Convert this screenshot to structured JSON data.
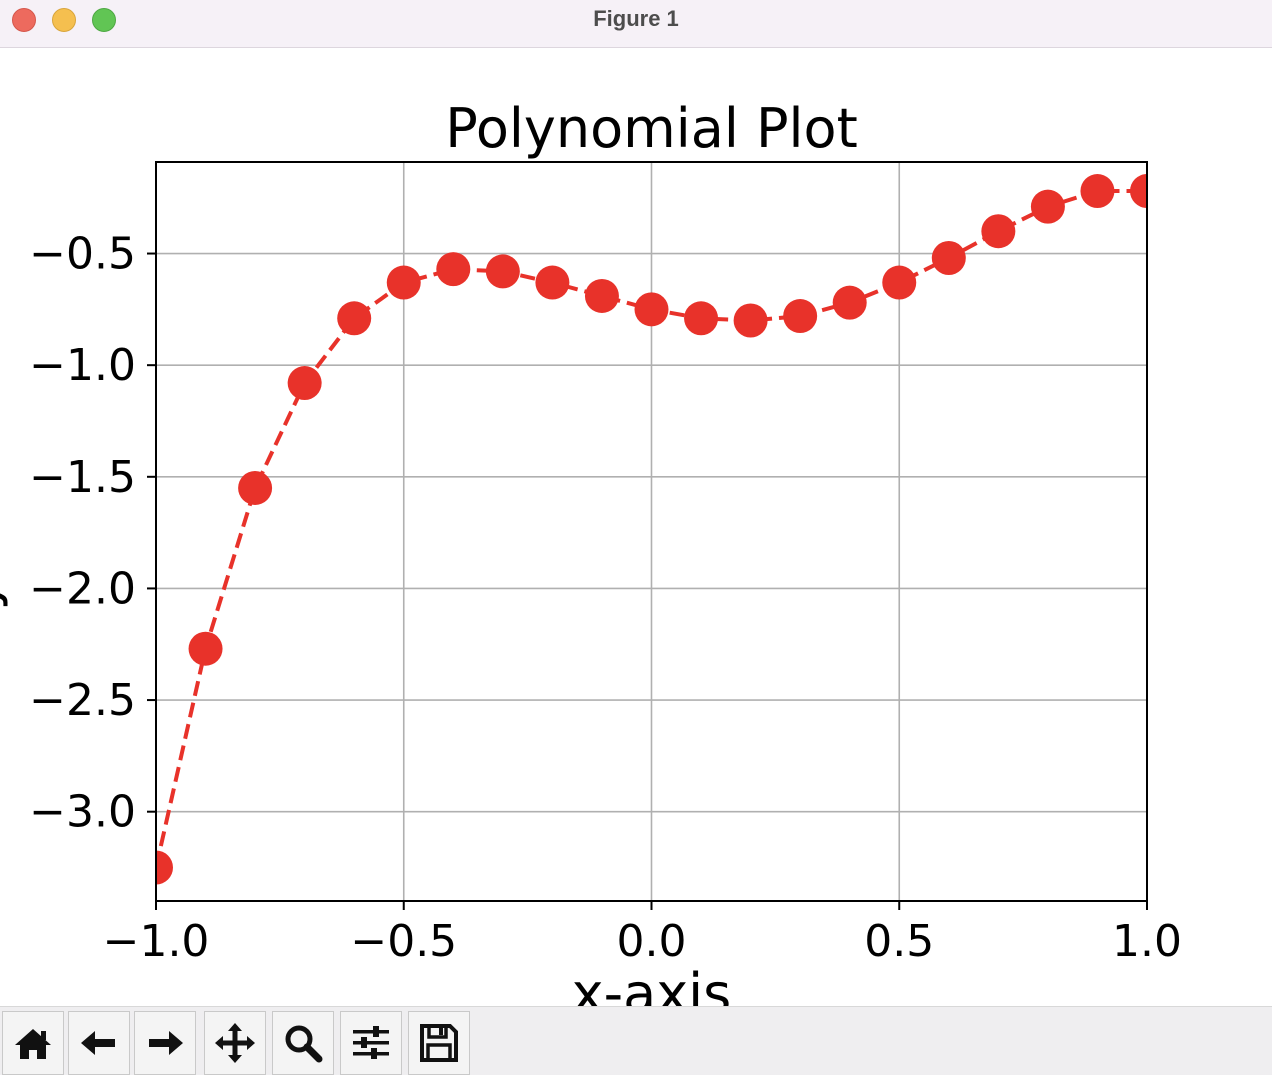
{
  "window": {
    "title": "Figure 1",
    "controls": [
      "close",
      "minimize",
      "maximize"
    ]
  },
  "toolbar": {
    "buttons": [
      {
        "name": "home",
        "icon": "home-icon"
      },
      {
        "name": "back",
        "icon": "arrow-left-icon"
      },
      {
        "name": "forward",
        "icon": "arrow-right-icon"
      },
      {
        "name": "pan",
        "icon": "move-icon"
      },
      {
        "name": "zoom",
        "icon": "magnifier-icon"
      },
      {
        "name": "configure-subplots",
        "icon": "sliders-icon"
      },
      {
        "name": "save",
        "icon": "floppy-disk-icon"
      }
    ]
  },
  "chart_data": {
    "type": "line",
    "title": "Polynomial Plot",
    "xlabel": "x-axis",
    "ylabel": "y-axis",
    "xlim": [
      -1.0,
      1.0
    ],
    "ylim": [
      -3.4,
      -0.09
    ],
    "xticks": [
      -1.0,
      -0.5,
      0.0,
      0.5,
      1.0
    ],
    "xtick_labels": [
      "−1.0",
      "−0.5",
      "0.0",
      "0.5",
      "1.0"
    ],
    "yticks": [
      -3.0,
      -2.5,
      -2.0,
      -1.5,
      -1.0,
      -0.5
    ],
    "ytick_labels": [
      "−3.0",
      "−2.5",
      "−2.0",
      "−1.5",
      "−1.0",
      "−0.5"
    ],
    "grid": true,
    "series": [
      {
        "color": "#e8322a",
        "linestyle": "dashed",
        "marker": "circle",
        "x": [
          -1.0,
          -0.9,
          -0.8,
          -0.7,
          -0.6,
          -0.5,
          -0.4,
          -0.3,
          -0.2,
          -0.1,
          0.0,
          0.1,
          0.2,
          0.3,
          0.4,
          0.5,
          0.6,
          0.7,
          0.8,
          0.9,
          1.0
        ],
        "y": [
          -3.25,
          -2.27,
          -1.55,
          -1.08,
          -0.79,
          -0.63,
          -0.57,
          -0.58,
          -0.63,
          -0.69,
          -0.75,
          -0.79,
          -0.8,
          -0.78,
          -0.72,
          -0.63,
          -0.52,
          -0.4,
          -0.29,
          -0.22,
          -0.22
        ]
      }
    ]
  }
}
